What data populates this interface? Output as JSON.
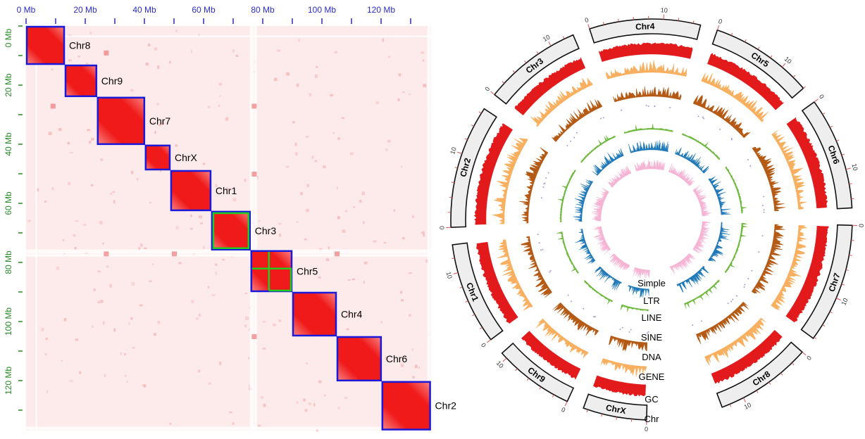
{
  "chart_data": [
    {
      "type": "heatmap",
      "title": "",
      "x_tick_labels": [
        "0 Mb",
        "20 Mb",
        "40 Mb",
        "60 Mb",
        "80 Mb",
        "100 Mb",
        "120 Mb"
      ],
      "y_tick_labels": [
        "0 Mb",
        "20 Mb",
        "40 Mb",
        "60 Mb",
        "80 Mb",
        "100 Mb",
        "120 Mb"
      ],
      "xlim": [
        0,
        136.8
      ],
      "ylim": [
        0,
        136.8
      ],
      "tick_step_mb": 10,
      "colors": {
        "background": "#fdeaea",
        "contact": "#f01010",
        "block_border": "#1a1ad8",
        "sub_domain": "#22cc22",
        "x_axis": "#2c2cc8",
        "y_axis": "#2a8a2a"
      },
      "blocks": [
        {
          "name": "Chr8",
          "start": 0,
          "end": 13.1
        },
        {
          "name": "Chr9",
          "start": 13.1,
          "end": 24.0
        },
        {
          "name": "Chr7",
          "start": 24.0,
          "end": 40.2
        },
        {
          "name": "ChrX",
          "start": 40.2,
          "end": 48.8
        },
        {
          "name": "Chr1",
          "start": 48.8,
          "end": 62.6
        },
        {
          "name": "Chr3",
          "start": 62.6,
          "end": 75.9
        },
        {
          "name": "Chr5",
          "start": 75.9,
          "end": 90.0
        },
        {
          "name": "Chr4",
          "start": 90.0,
          "end": 105.0
        },
        {
          "name": "Chr6",
          "start": 105.0,
          "end": 120.2
        },
        {
          "name": "Chr2",
          "start": 120.2,
          "end": 136.8
        }
      ]
    },
    {
      "type": "circos",
      "chromosomes": [
        {
          "name": "Chr4",
          "length": 15.0
        },
        {
          "name": "Chr5",
          "length": 14.0
        },
        {
          "name": "Chr6",
          "length": 15.2
        },
        {
          "name": "Chr7",
          "length": 16.2
        },
        {
          "name": "Chr8",
          "length": 13.1
        },
        {
          "name": "ChrX",
          "length": 8.6
        },
        {
          "name": "Chr9",
          "length": 10.9
        },
        {
          "name": "Chr1",
          "length": 13.8
        },
        {
          "name": "Chr2",
          "length": 16.7
        },
        {
          "name": "Chr3",
          "length": 13.3
        }
      ],
      "tick_labels": [
        "0",
        "10"
      ],
      "tracks": [
        {
          "name": "Simple",
          "color": "#f6b4d4"
        },
        {
          "name": "LTR",
          "color": "#1f78b8"
        },
        {
          "name": "LINE",
          "color": "#6cb83a"
        },
        {
          "name": "SINE",
          "color": "#a79ad6"
        },
        {
          "name": "DNA",
          "color": "#b55a14"
        },
        {
          "name": "GENE",
          "color": "#f8b060"
        },
        {
          "name": "GC",
          "color": "#e31a1c"
        },
        {
          "name": "Chr",
          "color": "#eeeeee"
        }
      ]
    }
  ]
}
